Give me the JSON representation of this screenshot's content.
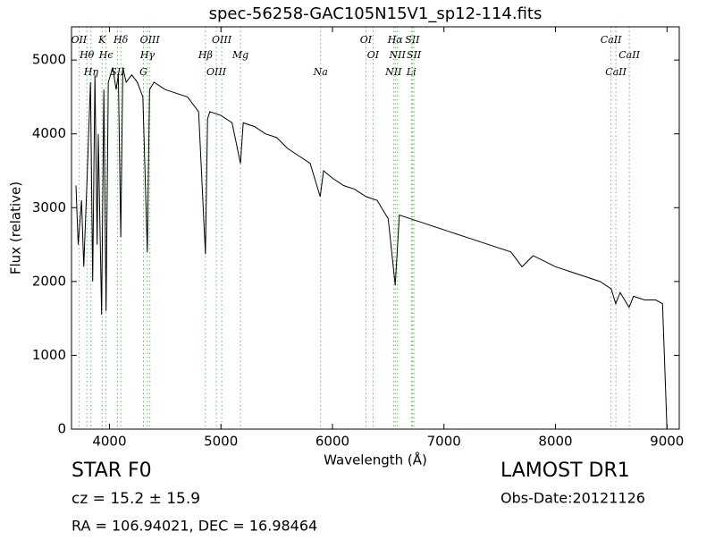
{
  "chart_data": {
    "type": "line",
    "title": "spec-56258-GAC105N15V1_sp12-114.fits",
    "x_label": "Wavelength (Å)",
    "y_label": "Flux (relative)",
    "xlim": [
      3660,
      9110
    ],
    "ylim": [
      0,
      5450
    ],
    "xticks": [
      4000,
      5000,
      6000,
      7000,
      8000,
      9000
    ],
    "yticks": [
      0,
      1000,
      2000,
      3000,
      4000,
      5000
    ],
    "series": [
      {
        "name": "Flux",
        "color": "#000000",
        "x": [
          3700,
          3720,
          3750,
          3770,
          3800,
          3830,
          3850,
          3870,
          3890,
          3900,
          3930,
          3950,
          3970,
          3990,
          4030,
          4060,
          4080,
          4102,
          4120,
          4150,
          4200,
          4250,
          4300,
          4340,
          4360,
          4400,
          4500,
          4600,
          4700,
          4800,
          4861,
          4880,
          4900,
          5000,
          5100,
          5175,
          5200,
          5300,
          5400,
          5500,
          5600,
          5700,
          5800,
          5890,
          5920,
          6000,
          6100,
          6200,
          6300,
          6400,
          6500,
          6563,
          6600,
          6700,
          6800,
          7000,
          7200,
          7400,
          7600,
          7700,
          7800,
          8000,
          8200,
          8400,
          8500,
          8540,
          8580,
          8660,
          8700,
          8800,
          8900,
          8960,
          9000
        ],
        "values": [
          3300,
          2500,
          3100,
          2200,
          3400,
          4700,
          2000,
          4800,
          2500,
          4000,
          1550,
          4600,
          1600,
          4700,
          4900,
          4600,
          4800,
          2600,
          4900,
          4700,
          4800,
          4700,
          4500,
          2400,
          4600,
          4700,
          4600,
          4550,
          4500,
          4300,
          2370,
          4200,
          4300,
          4250,
          4150,
          3600,
          4150,
          4100,
          4000,
          3950,
          3800,
          3700,
          3600,
          3150,
          3500,
          3400,
          3300,
          3250,
          3150,
          3100,
          2850,
          1950,
          2900,
          2850,
          2800,
          2700,
          2600,
          2500,
          2400,
          2200,
          2350,
          2200,
          2100,
          2000,
          1900,
          1700,
          1850,
          1650,
          1800,
          1750,
          1750,
          1700,
          0
        ]
      }
    ],
    "spectral_lines": [
      {
        "label": "OII",
        "wavelength": 3727
      },
      {
        "label": "Hθ",
        "wavelength": 3798
      },
      {
        "label": "Hη",
        "wavelength": 3835
      },
      {
        "label": "K",
        "wavelength": 3934
      },
      {
        "label": "Hϵ",
        "wavelength": 3970
      },
      {
        "label": "SII",
        "wavelength": 4072
      },
      {
        "label": "Hδ",
        "wavelength": 4102
      },
      {
        "label": "Hγ",
        "wavelength": 4341
      },
      {
        "label": "G",
        "wavelength": 4305
      },
      {
        "label": "OIII",
        "wavelength": 4363
      },
      {
        "label": "Hβ",
        "wavelength": 4861
      },
      {
        "label": "OIII",
        "wavelength": 4959
      },
      {
        "label": "OIII",
        "wavelength": 5007
      },
      {
        "label": "Mg",
        "wavelength": 5175
      },
      {
        "label": "Na",
        "wavelength": 5894
      },
      {
        "label": "OI",
        "wavelength": 6300
      },
      {
        "label": "OI",
        "wavelength": 6364
      },
      {
        "label": "NII",
        "wavelength": 6548
      },
      {
        "label": "Hα",
        "wavelength": 6563
      },
      {
        "label": "NII",
        "wavelength": 6583
      },
      {
        "label": "Li",
        "wavelength": 6708
      },
      {
        "label": "SII",
        "wavelength": 6717
      },
      {
        "label": "SII",
        "wavelength": 6731
      },
      {
        "label": "CaII",
        "wavelength": 8542
      },
      {
        "label": "CaII",
        "wavelength": 8498
      },
      {
        "label": "CaII",
        "wavelength": 8662
      }
    ],
    "annotations": {
      "object": "STAR   F0",
      "survey": "LAMOST DR1",
      "redshift": "cz = 15.2  ± 15.9",
      "obs_date": "Obs-Date:20121126",
      "coords": "RA = 106.94021, DEC = 16.98464"
    }
  }
}
